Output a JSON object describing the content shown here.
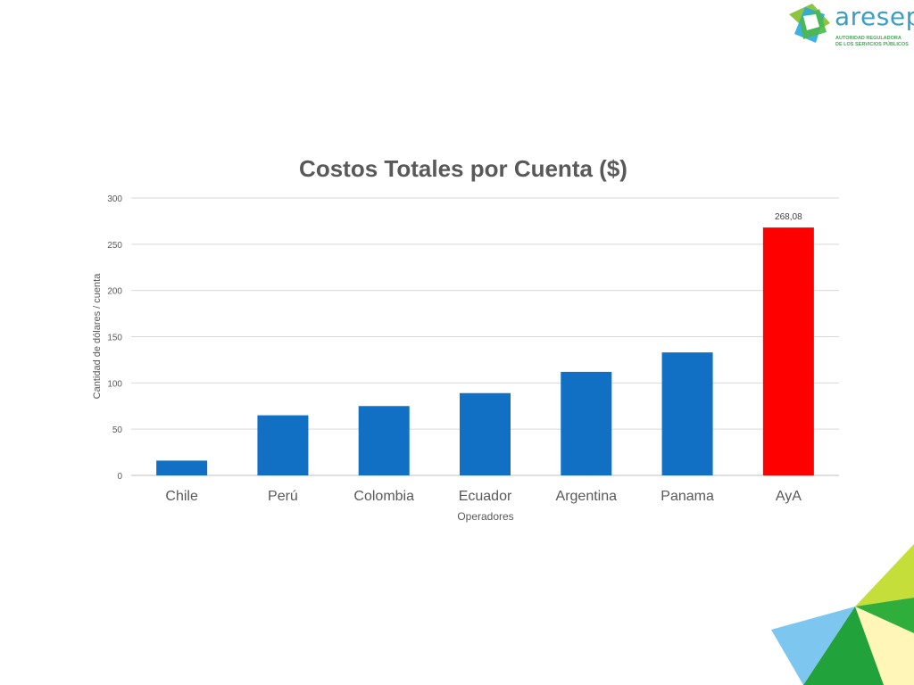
{
  "logo": {
    "brand": "aresep",
    "tagline": "AUTORIDAD REGULADORA\nDE LOS SERVICIOS PÚBLICOS"
  },
  "chart_data": {
    "type": "bar",
    "title": "Costos Totales por Cuenta ($)",
    "xlabel": "Operadores",
    "ylabel": "Cantidad de dólares / cuenta",
    "categories": [
      "Chile",
      "Perú",
      "Colombia",
      "Ecuador",
      "Argentina",
      "Panama",
      "AyA"
    ],
    "values": [
      16,
      65,
      75,
      89,
      112,
      133,
      268.08
    ],
    "data_labels": [
      "",
      "",
      "",
      "",
      "",
      "",
      "268,08"
    ],
    "colors": [
      "#1170c4",
      "#1170c4",
      "#1170c4",
      "#1170c4",
      "#1170c4",
      "#1170c4",
      "#ff0000"
    ],
    "ylim": [
      0,
      300
    ],
    "yticks": [
      "0",
      "50",
      "100",
      "150",
      "200",
      "250",
      "300"
    ],
    "grid": true,
    "legend": "none"
  }
}
